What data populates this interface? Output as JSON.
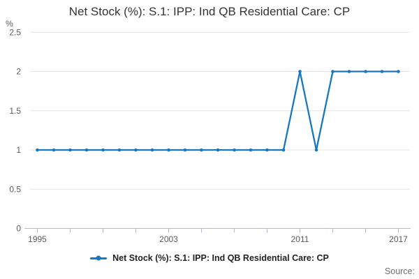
{
  "header": {
    "title": "Net Stock (%): S.1: IPP: Ind QB Residential Care: CP"
  },
  "chart_data": {
    "type": "line",
    "title": "Net Stock (%): S.1: IPP: Ind QB Residential Care: CP",
    "xlabel": "",
    "ylabel": "%",
    "ylim": [
      0,
      2.5
    ],
    "grid": true,
    "legend_position": "bottom",
    "x": [
      1995,
      1996,
      1997,
      1998,
      1999,
      2000,
      2001,
      2002,
      2003,
      2004,
      2005,
      2006,
      2007,
      2008,
      2009,
      2010,
      2011,
      2012,
      2013,
      2014,
      2015,
      2016,
      2017
    ],
    "series": [
      {
        "name": "Net Stock (%): S.1: IPP: Ind QB Residential Care: CP",
        "values": [
          1,
          1,
          1,
          1,
          1,
          1,
          1,
          1,
          1,
          1,
          1,
          1,
          1,
          1,
          1,
          1,
          2,
          1,
          2,
          2,
          2,
          2,
          2
        ]
      }
    ],
    "yticks": [
      0,
      0.5,
      1,
      1.5,
      2,
      2.5
    ],
    "ytick_labels": [
      "0",
      "0.5",
      "1",
      "1.5",
      "2",
      "2.5"
    ],
    "xticks": [
      1995,
      1997,
      1999,
      2001,
      2003,
      2005,
      2007,
      2009,
      2011,
      2013,
      2015,
      2017
    ],
    "xtick_labels": [
      "1995",
      "2003",
      "2011",
      "2017"
    ],
    "xtick_label_years": [
      1995,
      2003,
      2011,
      2017
    ],
    "colors": {
      "line": "#1778bf",
      "grid": "#e3e3e3",
      "axis": "#afbdd1",
      "tick_text": "#595959"
    }
  },
  "footer": {
    "source_label": "Source:"
  }
}
